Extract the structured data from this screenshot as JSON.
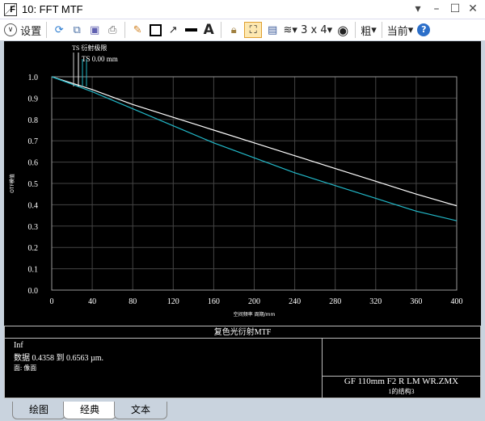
{
  "window": {
    "title": "10: FFT MTF",
    "controls": [
      "▾",
      "–",
      "☐",
      "✕"
    ]
  },
  "toolbar": {
    "settings_label": "设置",
    "layout_label": "3 x 4",
    "weight_label": "粗",
    "current_label": "当前",
    "icons": [
      "refresh-icon",
      "copy-icon",
      "save-icon",
      "print-icon",
      "pencil-icon",
      "rectangle-icon",
      "arrow-icon",
      "line-icon",
      "text-icon",
      "lock-icon",
      "fit-icon",
      "window-icon",
      "layers-icon",
      "layout-icon",
      "rotate-icon",
      "help-icon"
    ]
  },
  "plot": {
    "legend_title": "TS 衍射极限",
    "legend_sub": "TS 0.00 mm"
  },
  "chart_data": {
    "type": "line",
    "xlabel": "空间频率 周期/mm",
    "ylabel": "OTF模值",
    "xlim": [
      0,
      400
    ],
    "ylim": [
      0,
      1
    ],
    "xticks": [
      "0",
      "40",
      "80",
      "120",
      "160",
      "200",
      "240",
      "280",
      "320",
      "360",
      "400"
    ],
    "yticks": [
      "0.0",
      "0.1",
      "0.2",
      "0.3",
      "0.4",
      "0.5",
      "0.6",
      "0.7",
      "0.8",
      "0.9",
      "1.0"
    ],
    "grid": true,
    "x": [
      0,
      40,
      80,
      120,
      160,
      200,
      240,
      280,
      320,
      360,
      400
    ],
    "series": [
      {
        "name": "TS 衍射极限",
        "color": "#ffffff",
        "values": [
          1.0,
          0.94,
          0.87,
          0.81,
          0.75,
          0.69,
          0.63,
          0.57,
          0.51,
          0.45,
          0.395
        ]
      },
      {
        "name": "TS 0.00 mm",
        "color": "#22b8c8",
        "values": [
          1.0,
          0.93,
          0.85,
          0.77,
          0.69,
          0.62,
          0.55,
          0.49,
          0.43,
          0.37,
          0.325
        ]
      }
    ]
  },
  "info": {
    "heading": "复色光衍射MTF",
    "field": "Inf",
    "data_range": "数据 0.4358 到 0.6563 µm.",
    "surface": "面: 像面",
    "file": "GF 110mm F2 R LM WR.ZMX",
    "config": "1的结构3"
  },
  "tabs": [
    "绘图",
    "经典",
    "文本"
  ]
}
